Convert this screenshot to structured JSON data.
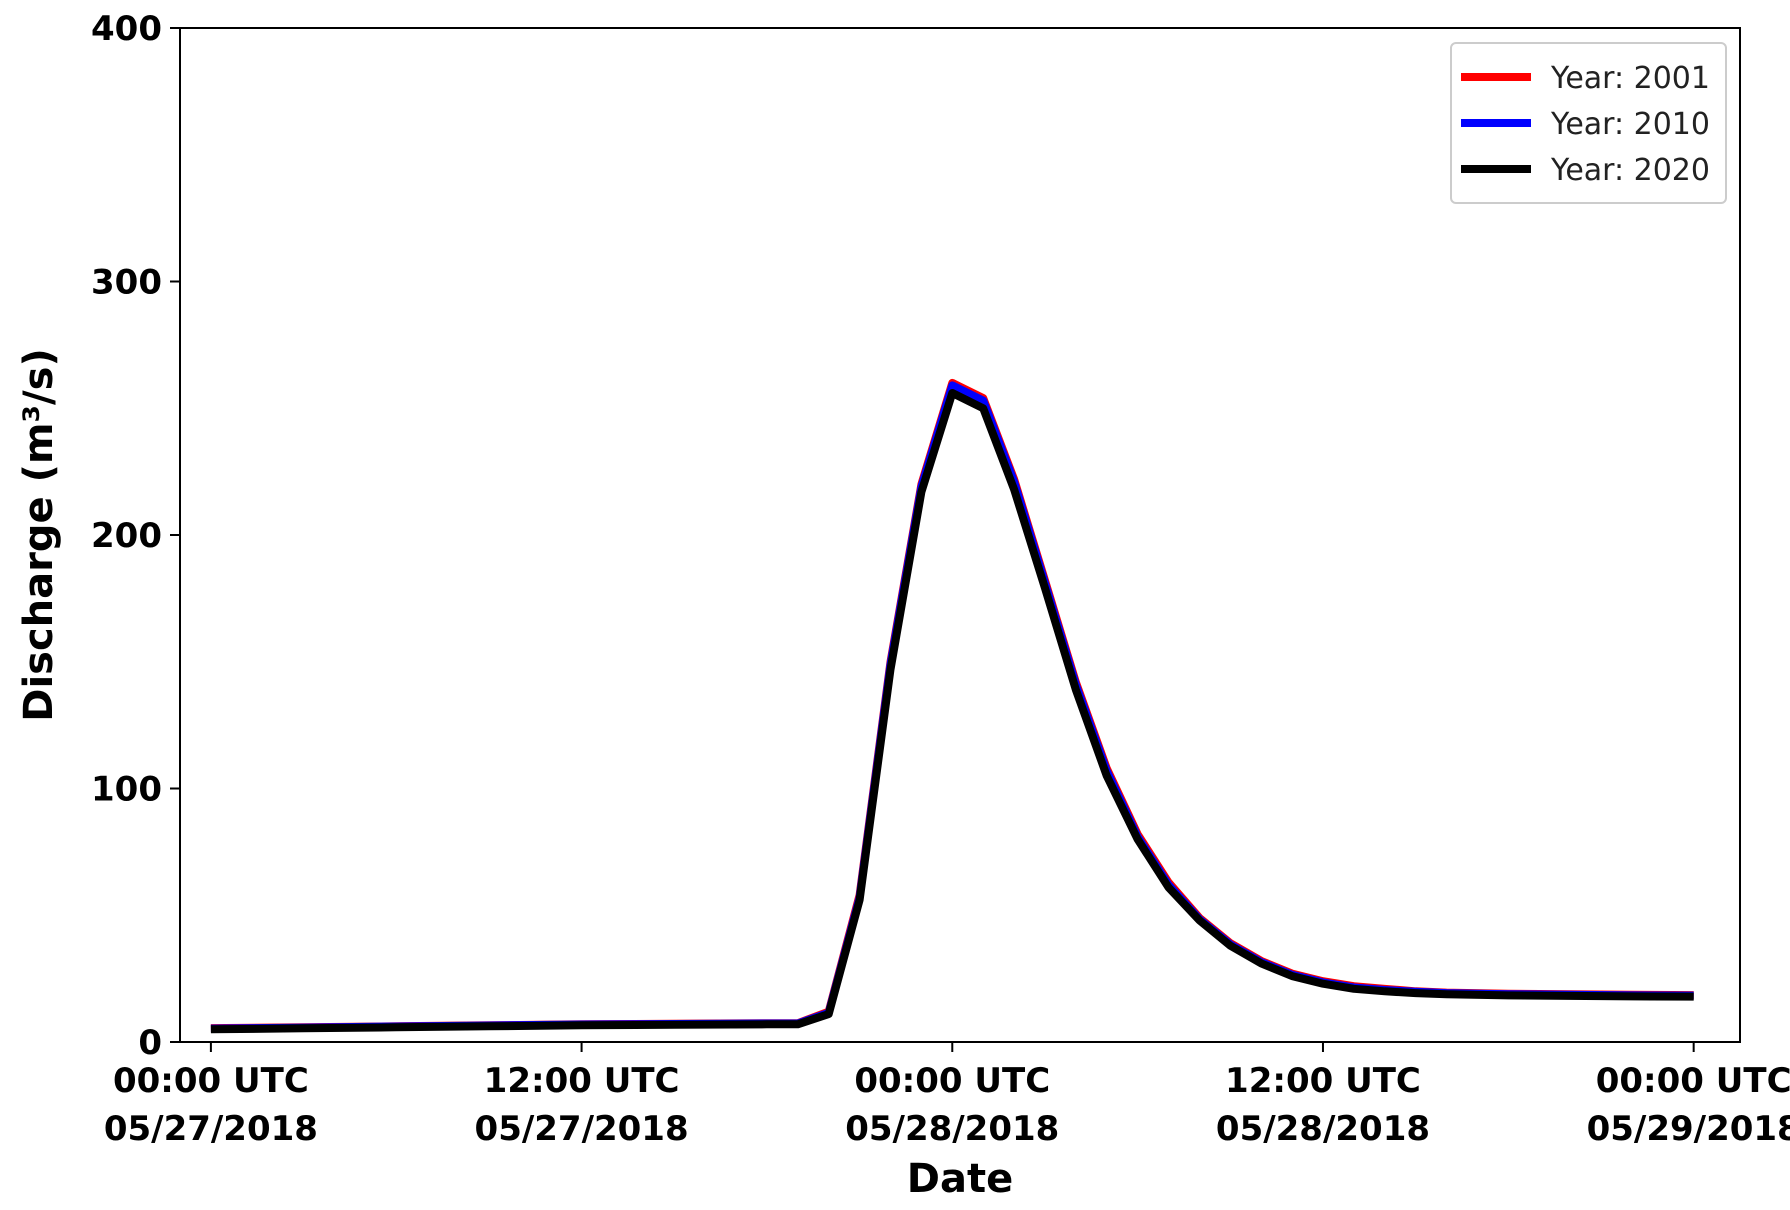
{
  "chart_data": {
    "type": "line",
    "title": "",
    "xlabel": "Date",
    "ylabel": "Discharge (m³/s)",
    "ylim": [
      0,
      400
    ],
    "xlim_hours": [
      -1,
      49.5
    ],
    "yticks": [
      0,
      100,
      200,
      300,
      400
    ],
    "xticks": [
      {
        "hour": 0,
        "label": [
          "00:00 UTC",
          "05/27/2018"
        ]
      },
      {
        "hour": 12,
        "label": [
          "12:00 UTC",
          "05/27/2018"
        ]
      },
      {
        "hour": 24,
        "label": [
          "00:00 UTC",
          "05/28/2018"
        ]
      },
      {
        "hour": 36,
        "label": [
          "12:00 UTC",
          "05/28/2018"
        ]
      },
      {
        "hour": 48,
        "label": [
          "00:00 UTC",
          "05/29/2018"
        ]
      }
    ],
    "grid": false,
    "legend_position": "top-right",
    "x": [
      0,
      3,
      6,
      9,
      12,
      15,
      18,
      19,
      20,
      21,
      22,
      23,
      24,
      25,
      26,
      27,
      28,
      29,
      30,
      31,
      32,
      33,
      34,
      35,
      36,
      37,
      38,
      39,
      40,
      42,
      44,
      46,
      48
    ],
    "series": [
      {
        "name": "Year: 2001",
        "color": "#ff0000",
        "values": [
          5.5,
          5.8,
          6.2,
          6.6,
          7.0,
          7.2,
          7.4,
          7.4,
          12,
          58,
          150,
          220,
          260,
          254,
          222,
          182,
          142,
          108,
          82,
          63,
          49,
          39,
          32,
          27,
          24,
          22,
          21,
          20,
          19.5,
          19,
          18.8,
          18.6,
          18.5
        ]
      },
      {
        "name": "Year: 2010",
        "color": "#0000ff",
        "values": [
          5.3,
          5.7,
          6.1,
          6.5,
          6.9,
          7.1,
          7.3,
          7.3,
          11.5,
          57,
          149,
          219,
          259,
          253,
          221,
          181,
          141,
          107,
          81,
          62,
          48.5,
          38.5,
          31.5,
          26.5,
          23.5,
          21.5,
          20.5,
          19.8,
          19.3,
          18.8,
          18.6,
          18.4,
          18.3
        ]
      },
      {
        "name": "Year: 2020",
        "color": "#000000",
        "values": [
          5.0,
          5.4,
          5.8,
          6.2,
          6.6,
          6.8,
          7.0,
          7.0,
          11,
          56,
          147,
          217,
          256,
          250,
          218,
          179,
          139,
          105,
          80,
          61,
          48,
          38,
          31,
          26,
          23,
          21,
          20,
          19.3,
          18.8,
          18.4,
          18.2,
          18.0,
          17.9
        ]
      }
    ]
  }
}
